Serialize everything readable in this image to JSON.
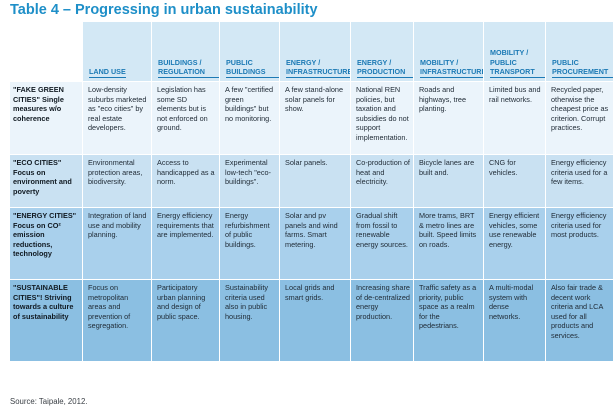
{
  "title": "Table 4 – Progressing in urban sustainability",
  "columns": [
    "LAND USE",
    "BUILDINGS / REGULATION",
    "PUBLIC BUILDINGS",
    "ENERGY / INFRASTRUCTURE",
    "ENERGY / PRODUCTION",
    "MOBILITY / INFRASTRUCTURE",
    "MOBILITY / PUBLIC TRANSPORT",
    "PUBLIC PROCUREMENT"
  ],
  "rows": [
    {
      "label": "\"FAKE GREEN CITIES\" Single measures w/o coherence",
      "cells": [
        "Low-density suburbs marketed as \"eco cities\" by real estate developers.",
        "Legislation has some SD elements but is not enforced on ground.",
        "A few \"certified green buildings\" but no monitoring.",
        "A few stand-alone solar panels for show.",
        "National REN policies, but taxation and subsidies do not support implementation.",
        "Roads and highways, tree planting.",
        "Limited bus and rail networks.",
        "Recycled paper, otherwise the cheapest price as criterion. Corrupt practices."
      ]
    },
    {
      "label": "\"ECO CITIES\" Focus on environment and poverty",
      "cells": [
        "Environmental protection areas, biodiversity.",
        "Access to handicapped as a norm.",
        "Experimental low-tech \"eco-buildings\".",
        "Solar panels.",
        "Co-production of heat and electricity.",
        "Bicycle lanes are built and.",
        "CNG for vehicles.",
        "Energy efficiency criteria used for a few items."
      ]
    },
    {
      "label": "\"ENERGY CITIES\" Focus on CO² emission reductions, technology",
      "cells": [
        "Integration of land use and mobility planning.",
        "Energy efficiency requirements that are implemented.",
        "Energy refurbishment of public buildings.",
        "Solar and pv panels and wind farms. Smart metering.",
        "Gradual shift from fossil to renewable energy sources.",
        "More trams, BRT & metro lines are built. Speed limits on roads.",
        "Energy efficient vehicles, some use renewable energy.",
        "Energy efficiency criteria used for most products."
      ]
    },
    {
      "label": "\"SUSTAINABLE CITIES\"! Striving towards a culture of sustainability",
      "cells": [
        "Focus on metropolitan areas and prevention of segregation.",
        "Participatory urban planning and design of public space.",
        "Sustainability criteria used also in public housing.",
        "Local grids and smart grids.",
        "Increasing share of de-centralized energy production.",
        "Traffic safety as a priority, public space as a realm for the pedestrians.",
        "A multi-modal system with dense networks.",
        "Also fair trade & decent work criteria and LCA used for all products and services."
      ]
    }
  ],
  "source": "Source: Taipale, 2012.",
  "colors": {
    "title": "#1e8fc8",
    "header_bg": "#d3e8f5",
    "header_text": "#1c7ab5",
    "row_1_bg": "#ebf4fb",
    "row_2_bg": "#c9e1f2",
    "row_3_bg": "#a9d0ec",
    "row_4_bg": "#8bbfe2"
  }
}
